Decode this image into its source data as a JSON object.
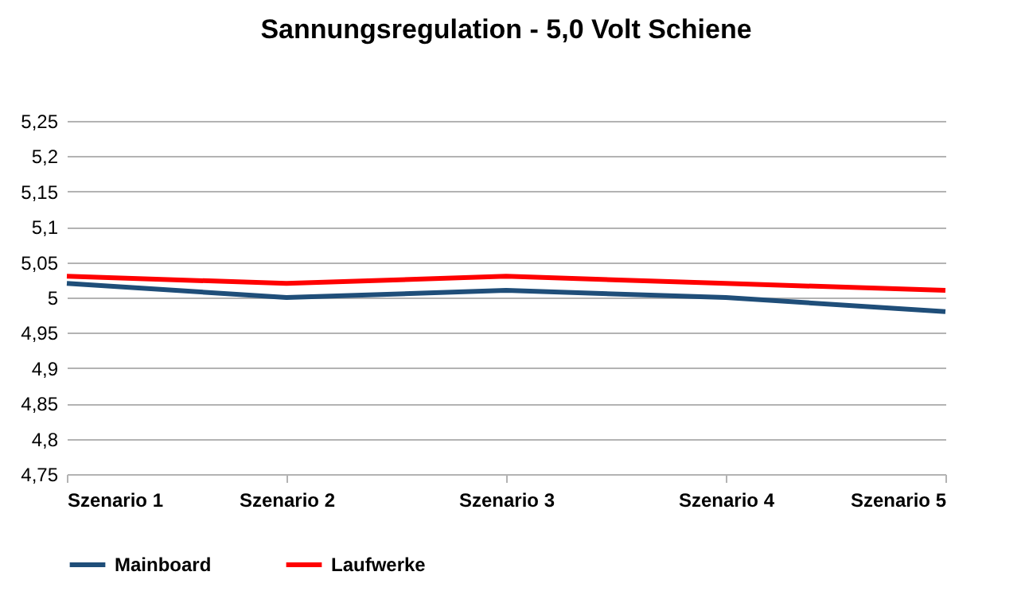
{
  "chart_data": {
    "type": "line",
    "title": "Sannungsregulation - 5,0 Volt Schiene",
    "categories": [
      "Szenario 1",
      "Szenario 2",
      "Szenario 3",
      "Szenario 4",
      "Szenario 5"
    ],
    "series": [
      {
        "name": "Mainboard",
        "color": "#1f4e79",
        "values": [
          5.02,
          5.0,
          5.01,
          5.0,
          4.98
        ]
      },
      {
        "name": "Laufwerke",
        "color": "#ff0000",
        "values": [
          5.03,
          5.02,
          5.03,
          5.02,
          5.01
        ]
      }
    ],
    "ylim": [
      4.75,
      5.25
    ],
    "yticks": [
      {
        "value": 4.75,
        "label": "4,75"
      },
      {
        "value": 4.8,
        "label": "4,8"
      },
      {
        "value": 4.85,
        "label": "4,85"
      },
      {
        "value": 4.9,
        "label": "4,9"
      },
      {
        "value": 4.95,
        "label": "4,95"
      },
      {
        "value": 5,
        "label": "5"
      },
      {
        "value": 5.05,
        "label": "5,05"
      },
      {
        "value": 5.1,
        "label": "5,1"
      },
      {
        "value": 5.15,
        "label": "5,15"
      },
      {
        "value": 5.2,
        "label": "5,2"
      },
      {
        "value": 5.25,
        "label": "5,25"
      }
    ],
    "grid": "y",
    "legend": "bottom",
    "marker": "none",
    "line_style": "solid"
  }
}
